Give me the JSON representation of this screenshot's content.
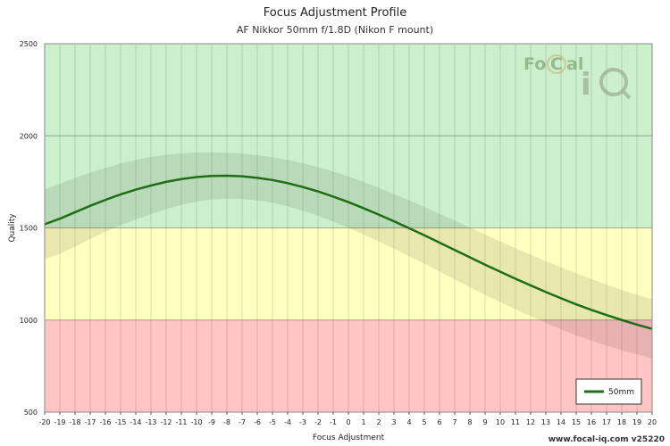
{
  "chart_data": {
    "type": "line",
    "title": "Focus Adjustment Profile",
    "subtitle": "AF Nikkor 50mm f/1.8D (Nikon F mount)",
    "xlabel": "Focus Adjustment",
    "ylabel": "Quality",
    "xlim": [
      -20,
      20
    ],
    "ylim": [
      500,
      2500
    ],
    "x_ticks": [
      -20,
      -19,
      -18,
      -17,
      -16,
      -15,
      -14,
      -13,
      -12,
      -11,
      -10,
      -9,
      -8,
      -7,
      -6,
      -5,
      -4,
      -3,
      -2,
      -1,
      0,
      1,
      2,
      3,
      4,
      5,
      6,
      7,
      8,
      9,
      10,
      11,
      12,
      13,
      14,
      15,
      16,
      17,
      18,
      19,
      20
    ],
    "y_ticks": [
      500,
      1000,
      1500,
      2000,
      2500
    ],
    "zones": [
      {
        "from": 1500,
        "to": 2500,
        "color": "#ccf0cc"
      },
      {
        "from": 1000,
        "to": 1500,
        "color": "#ffffc0"
      },
      {
        "from": 500,
        "to": 1000,
        "color": "#ffc4c4"
      }
    ],
    "series": [
      {
        "name": "50mm",
        "color": "#1e6e14",
        "x": [
          -20,
          -19,
          -18,
          -17,
          -16,
          -15,
          -14,
          -13,
          -12,
          -11,
          -10,
          -9,
          -8,
          -7,
          -6,
          -5,
          -4,
          -3,
          -2,
          -1,
          0,
          1,
          2,
          3,
          4,
          5,
          6,
          7,
          8,
          9,
          10,
          11,
          12,
          13,
          14,
          15,
          16,
          17,
          18,
          19,
          20
        ],
        "values": [
          1520,
          1550,
          1585,
          1620,
          1652,
          1682,
          1708,
          1730,
          1750,
          1765,
          1776,
          1782,
          1783,
          1780,
          1772,
          1760,
          1743,
          1722,
          1698,
          1670,
          1640,
          1607,
          1572,
          1536,
          1498,
          1460,
          1420,
          1380,
          1340,
          1300,
          1262,
          1224,
          1188,
          1152,
          1118,
          1085,
          1055,
          1027,
          1000,
          975,
          952
        ],
        "band_upper": [
          1710,
          1740,
          1772,
          1800,
          1825,
          1850,
          1870,
          1886,
          1897,
          1905,
          1909,
          1910,
          1908,
          1903,
          1895,
          1884,
          1869,
          1851,
          1830,
          1806,
          1779,
          1750,
          1718,
          1684,
          1650,
          1614,
          1577,
          1540,
          1502,
          1464,
          1427,
          1390,
          1355,
          1320,
          1286,
          1253,
          1222,
          1192,
          1164,
          1137,
          1112
        ],
        "band_lower": [
          1330,
          1360,
          1398,
          1440,
          1479,
          1514,
          1546,
          1574,
          1603,
          1625,
          1643,
          1654,
          1658,
          1657,
          1649,
          1636,
          1617,
          1593,
          1566,
          1534,
          1501,
          1464,
          1426,
          1388,
          1346,
          1306,
          1263,
          1220,
          1178,
          1136,
          1097,
          1058,
          1021,
          984,
          950,
          917,
          888,
          862,
          836,
          813,
          792
        ]
      }
    ],
    "legend": {
      "position": "bottom-right",
      "label": "50mm"
    },
    "grid": true
  },
  "logo": {
    "text": "FoCal iQ"
  },
  "footer": "www.focal-iq.com  v25220"
}
